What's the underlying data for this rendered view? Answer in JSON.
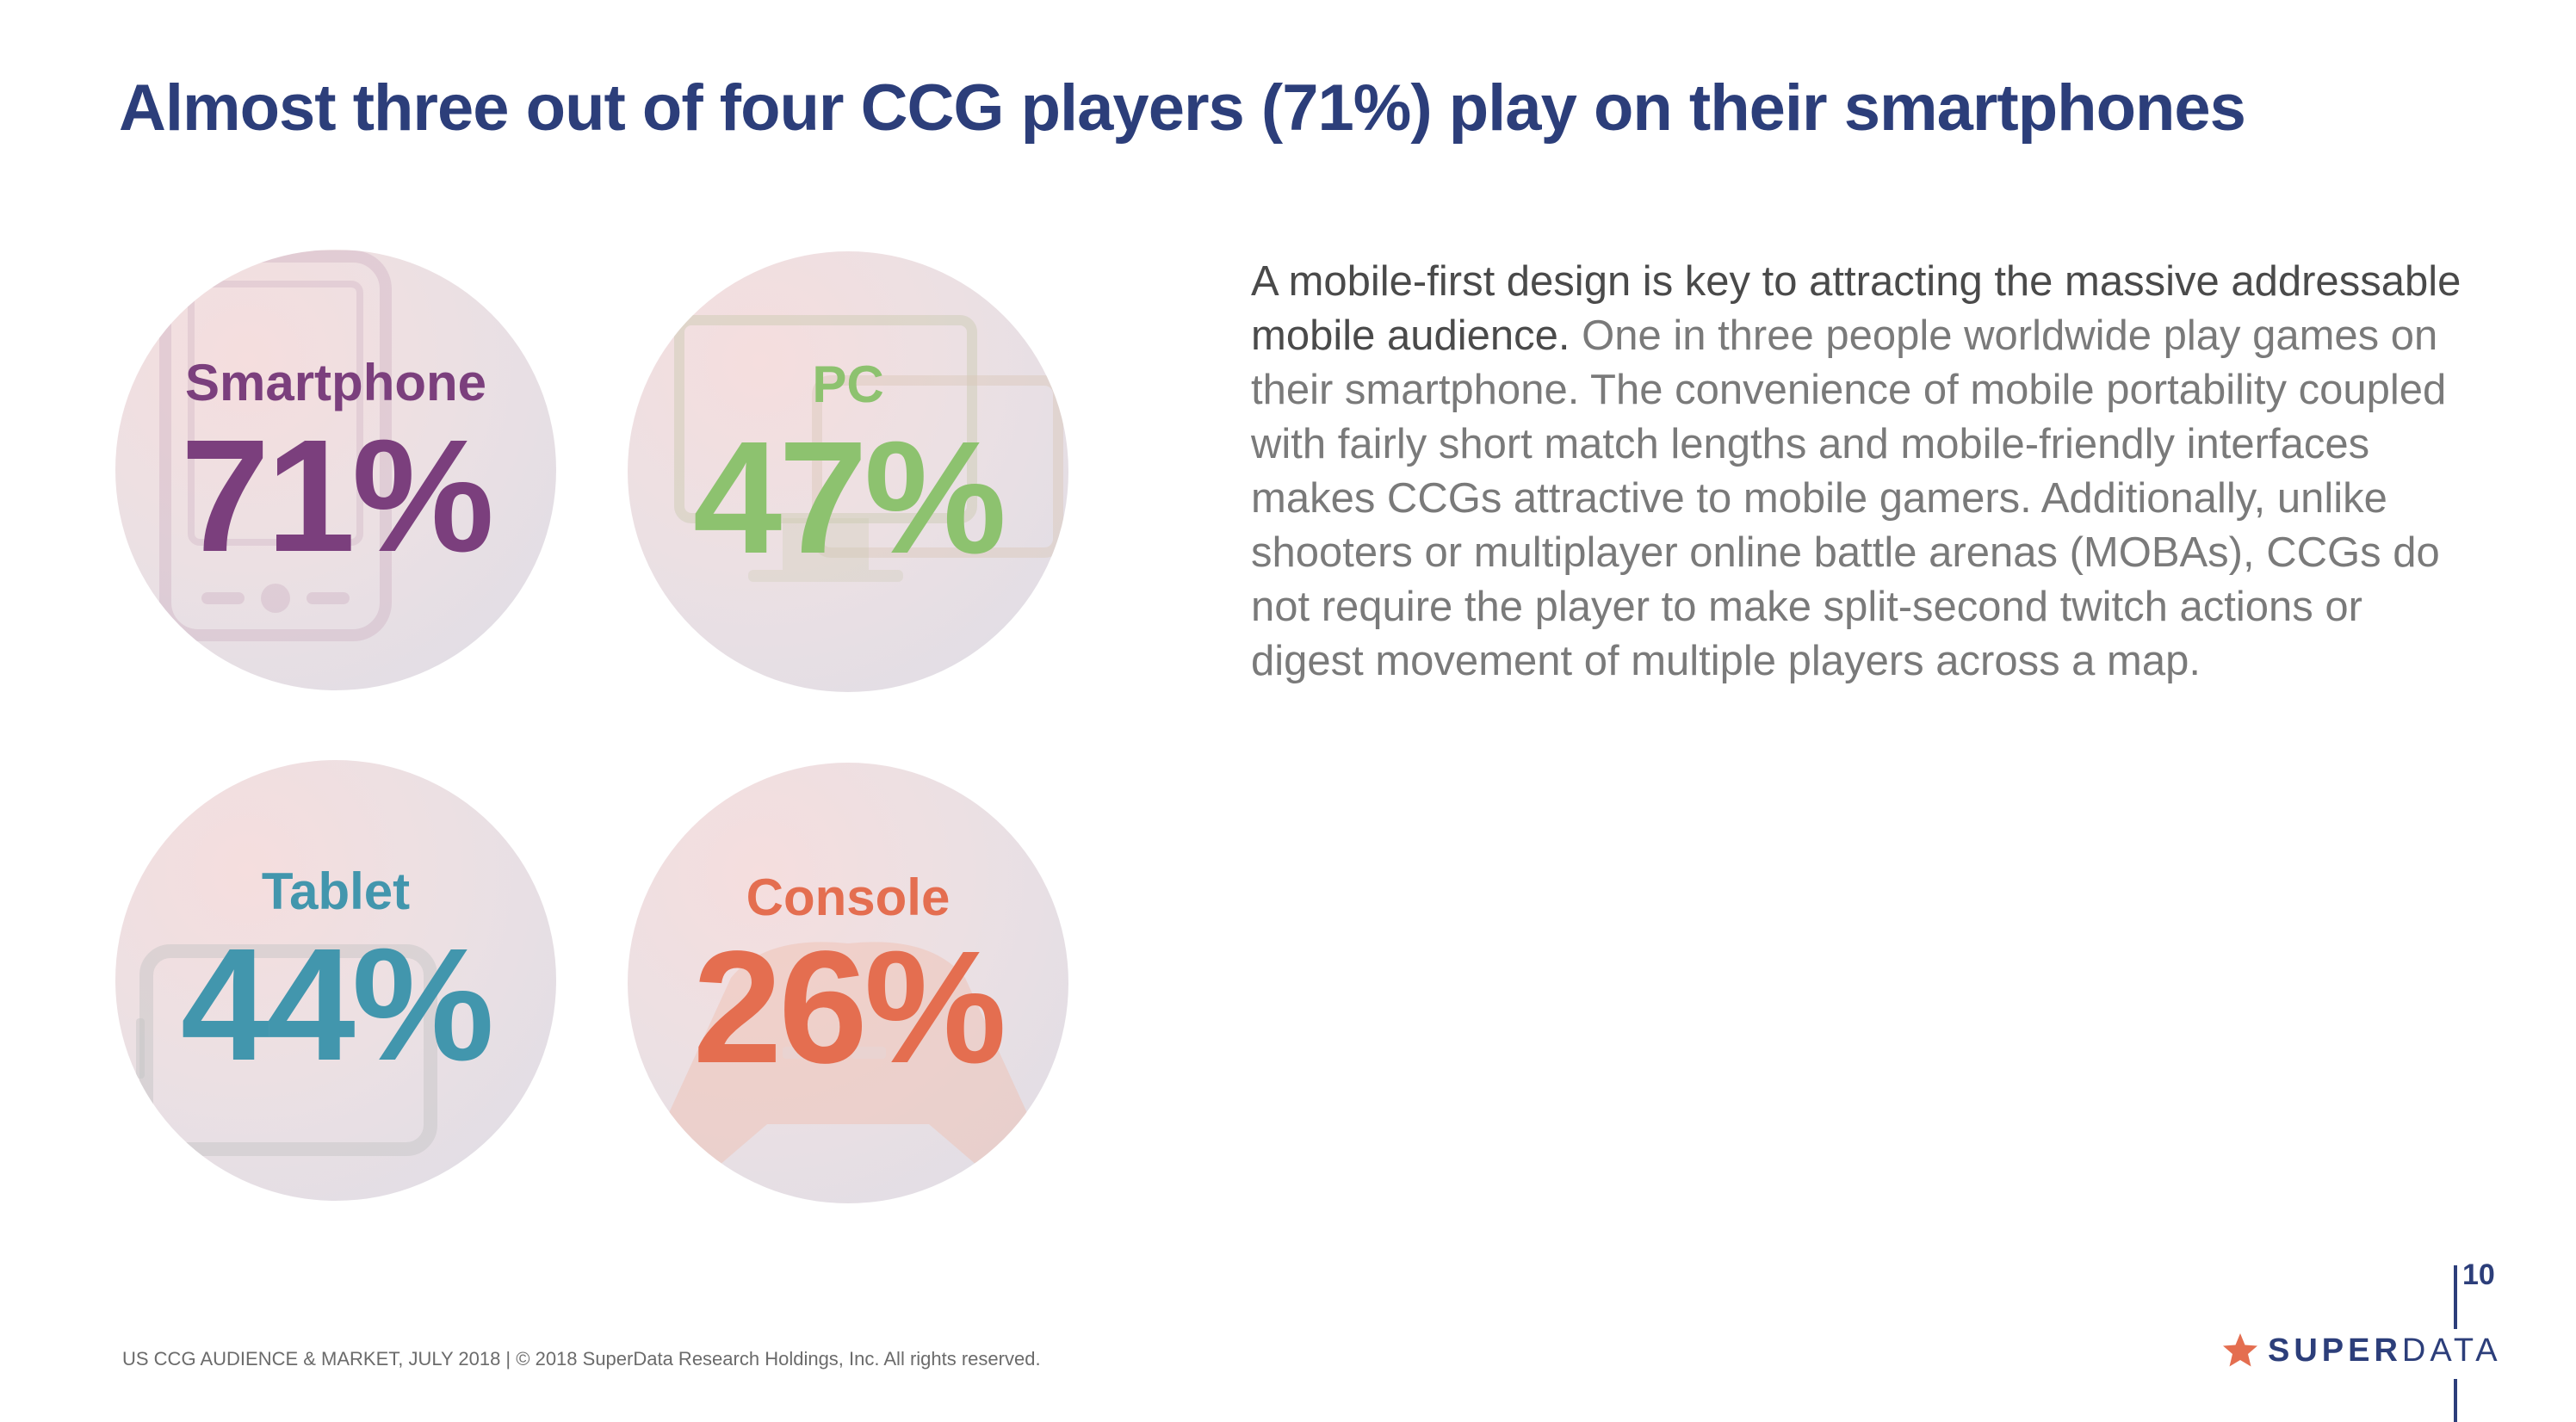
{
  "title": "Almost three out of four CCG players (71%) play on their smartphones",
  "platforms": [
    {
      "label": "Smartphone",
      "value": "71%",
      "color": "#7b3f7d",
      "icon": "smartphone-icon"
    },
    {
      "label": "PC",
      "value": "47%",
      "color": "#8dc26f",
      "icon": "desktop-monitor-icon"
    },
    {
      "label": "Tablet",
      "value": "44%",
      "color": "#4296ad",
      "icon": "tablet-icon"
    },
    {
      "label": "Console",
      "value": "26%",
      "color": "#e46e50",
      "icon": "gamepad-icon"
    }
  ],
  "body": {
    "lead": "A mobile-first design is key to attracting the massive addressable mobile audience.",
    "text": " One in three people worldwide play games on their smartphone. The convenience of mobile portability coupled with fairly short match lengths and mobile-friendly interfaces makes CCGs attractive to mobile gamers. Additionally, unlike shooters or multiplayer online battle arenas (MOBAs), CCGs do not require the player to make split-second twitch actions or digest movement of multiple players across a map."
  },
  "footer": "US CCG AUDIENCE & MARKET, JULY 2018  |  © 2018 SuperData Research Holdings, Inc. All rights reserved.",
  "page_number": "10",
  "brand": {
    "part1": "SUPER",
    "part2": "DATA",
    "star_color": "#e46e50"
  },
  "colors": {
    "title": "#2c3e7a",
    "body": "#7a7a7a",
    "lead": "#4a4a4a"
  }
}
